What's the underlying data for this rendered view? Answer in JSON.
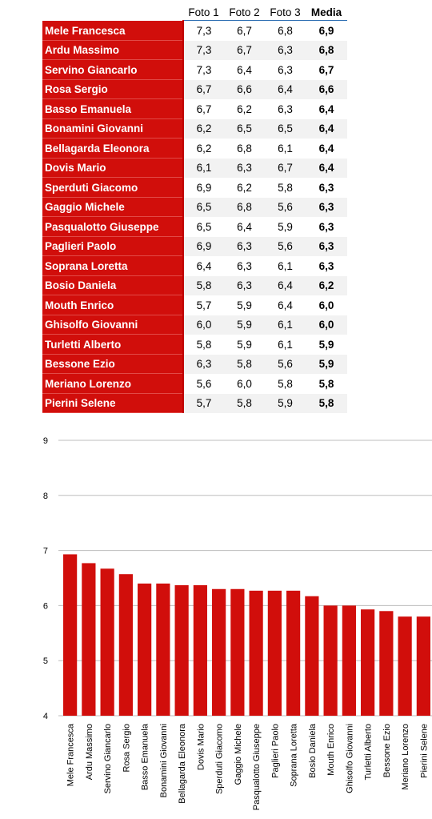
{
  "table": {
    "headers": [
      "",
      "Foto 1",
      "Foto 2",
      "Foto 3",
      "Media"
    ],
    "rows": [
      {
        "name": "Mele Francesca",
        "f1": "7,3",
        "f2": "6,7",
        "f3": "6,8",
        "avg": "6,9"
      },
      {
        "name": "Ardu Massimo",
        "f1": "7,3",
        "f2": "6,7",
        "f3": "6,3",
        "avg": "6,8"
      },
      {
        "name": "Servino Giancarlo",
        "f1": "7,3",
        "f2": "6,4",
        "f3": "6,3",
        "avg": "6,7"
      },
      {
        "name": "Rosa Sergio",
        "f1": "6,7",
        "f2": "6,6",
        "f3": "6,4",
        "avg": "6,6"
      },
      {
        "name": "Basso Emanuela",
        "f1": "6,7",
        "f2": "6,2",
        "f3": "6,3",
        "avg": "6,4"
      },
      {
        "name": "Bonamini Giovanni",
        "f1": "6,2",
        "f2": "6,5",
        "f3": "6,5",
        "avg": "6,4"
      },
      {
        "name": "Bellagarda Eleonora",
        "f1": "6,2",
        "f2": "6,8",
        "f3": "6,1",
        "avg": "6,4"
      },
      {
        "name": "Dovis Mario",
        "f1": "6,1",
        "f2": "6,3",
        "f3": "6,7",
        "avg": "6,4"
      },
      {
        "name": "Sperduti Giacomo",
        "f1": "6,9",
        "f2": "6,2",
        "f3": "5,8",
        "avg": "6,3"
      },
      {
        "name": "Gaggio Michele",
        "f1": "6,5",
        "f2": "6,8",
        "f3": "5,6",
        "avg": "6,3"
      },
      {
        "name": "Pasqualotto Giuseppe",
        "f1": "6,5",
        "f2": "6,4",
        "f3": "5,9",
        "avg": "6,3"
      },
      {
        "name": "Paglieri Paolo",
        "f1": "6,9",
        "f2": "6,3",
        "f3": "5,6",
        "avg": "6,3"
      },
      {
        "name": "Soprana Loretta",
        "f1": "6,4",
        "f2": "6,3",
        "f3": "6,1",
        "avg": "6,3"
      },
      {
        "name": "Bosio Daniela",
        "f1": "5,8",
        "f2": "6,3",
        "f3": "6,4",
        "avg": "6,2"
      },
      {
        "name": "Mouth Enrico",
        "f1": "5,7",
        "f2": "5,9",
        "f3": "6,4",
        "avg": "6,0"
      },
      {
        "name": "Ghisolfo Giovanni",
        "f1": "6,0",
        "f2": "5,9",
        "f3": "6,1",
        "avg": "6,0"
      },
      {
        "name": "Turletti Alberto",
        "f1": "5,8",
        "f2": "5,9",
        "f3": "6,1",
        "avg": "5,9"
      },
      {
        "name": "Bessone Ezio",
        "f1": "6,3",
        "f2": "5,8",
        "f3": "5,6",
        "avg": "5,9"
      },
      {
        "name": "Meriano Lorenzo",
        "f1": "5,6",
        "f2": "6,0",
        "f3": "5,8",
        "avg": "5,8"
      },
      {
        "name": "Pierini Selene",
        "f1": "5,7",
        "f2": "5,8",
        "f3": "5,9",
        "avg": "5,8"
      }
    ]
  },
  "chart_data": {
    "type": "bar",
    "categories": [
      "Mele Francesca",
      "Ardu Massimo",
      "Servino Giancarlo",
      "Rosa Sergio",
      "Basso Emanuela",
      "Bonamini Giovanni",
      "Bellagarda Eleonora",
      "Dovis Mario",
      "Sperduti Giacomo",
      "Gaggio Michele",
      "Pasqualotto Giuseppe",
      "Paglieri Paolo",
      "Soprana Loretta",
      "Bosio Daniela",
      "Mouth Enrico",
      "Ghisolfo Giovanni",
      "Turletti Alberto",
      "Bessone Ezio",
      "Meriano Lorenzo",
      "Pierini Selene"
    ],
    "values": [
      6.93,
      6.77,
      6.67,
      6.57,
      6.4,
      6.4,
      6.37,
      6.37,
      6.3,
      6.3,
      6.27,
      6.27,
      6.27,
      6.17,
      6.0,
      6.0,
      5.93,
      5.9,
      5.8,
      5.8
    ],
    "ylim": [
      4,
      9
    ],
    "yticks": [
      4,
      5,
      6,
      7,
      8,
      9
    ],
    "ytick_labels": [
      "4",
      "5",
      "6",
      "7",
      "8",
      "9"
    ],
    "grid": true,
    "bar_color": "#d10e0b",
    "title": "",
    "xlabel": "",
    "ylabel": ""
  }
}
